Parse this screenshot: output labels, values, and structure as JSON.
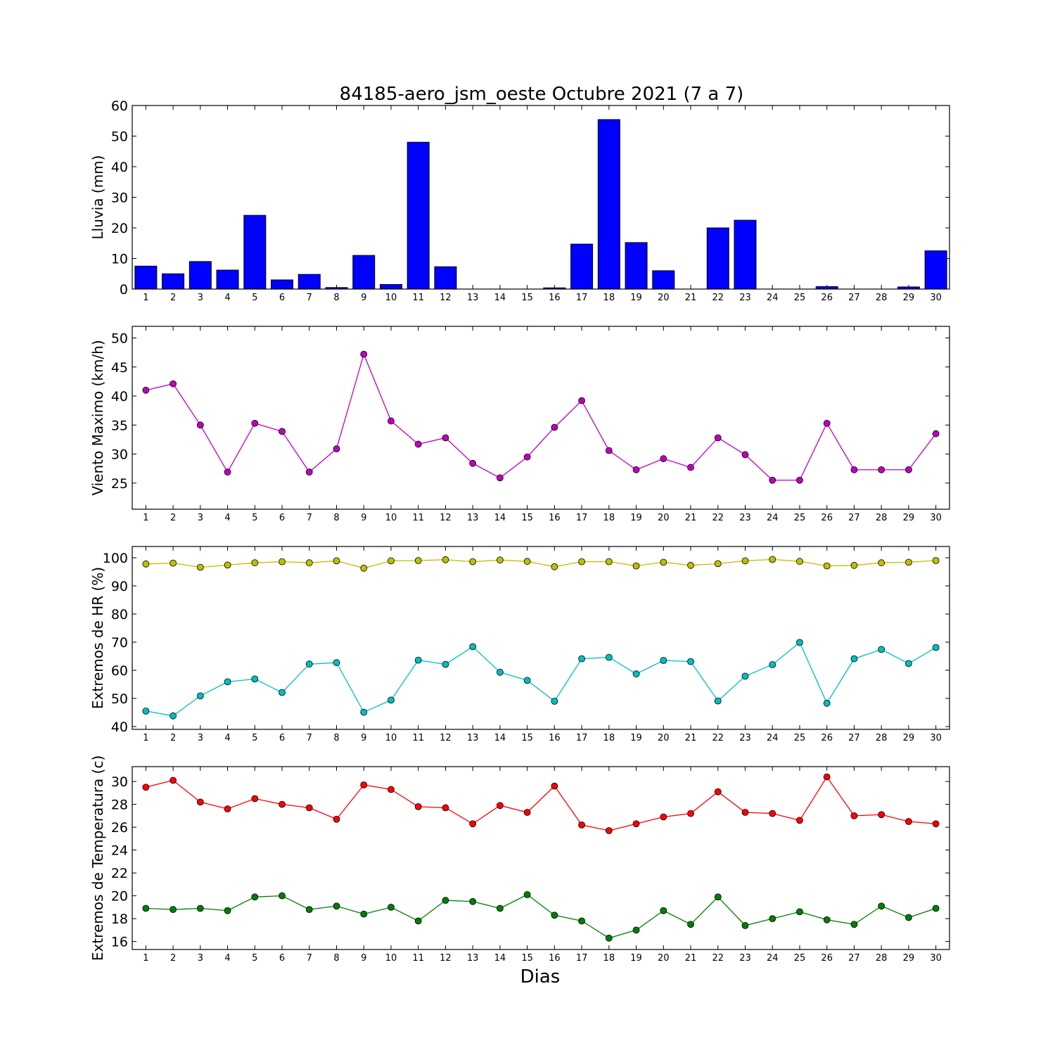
{
  "figure": {
    "title": "84185-aero_jsm_oeste Octubre 2021  (7 a 7)",
    "xlabel": "Dias"
  },
  "chart_data": [
    {
      "type": "bar",
      "ylabel": "Lluvia (mm)",
      "categories": [
        "1",
        "2",
        "3",
        "4",
        "5",
        "6",
        "7",
        "8",
        "9",
        "10",
        "11",
        "12",
        "13",
        "14",
        "15",
        "16",
        "17",
        "18",
        "19",
        "20",
        "21",
        "22",
        "23",
        "24",
        "25",
        "26",
        "27",
        "28",
        "29",
        "30"
      ],
      "ylim": [
        0,
        60
      ],
      "yticks": [
        0,
        10,
        20,
        30,
        40,
        50,
        60
      ],
      "series": [
        {
          "color": "#0000ff",
          "values": [
            7.5,
            5.0,
            9.0,
            6.2,
            24.1,
            3.0,
            4.8,
            0.5,
            11.0,
            1.5,
            48.0,
            7.3,
            0,
            0,
            0,
            0.4,
            14.7,
            55.4,
            15.2,
            6.0,
            0,
            20.0,
            22.5,
            0,
            0,
            0.8,
            0,
            0,
            0.7,
            12.5
          ]
        }
      ]
    },
    {
      "type": "line",
      "ylabel": "Viento Maximo (km/h)",
      "categories": [
        "1",
        "2",
        "3",
        "4",
        "5",
        "6",
        "7",
        "8",
        "9",
        "10",
        "11",
        "12",
        "13",
        "14",
        "15",
        "16",
        "17",
        "18",
        "19",
        "20",
        "21",
        "22",
        "23",
        "24",
        "25",
        "26",
        "27",
        "28",
        "29",
        "30"
      ],
      "ylim": [
        20.5,
        52
      ],
      "yticks": [
        25,
        30,
        35,
        40,
        45,
        50
      ],
      "series": [
        {
          "color": "#bf00bf",
          "values": [
            41.0,
            42.1,
            35.0,
            26.9,
            35.3,
            33.9,
            26.9,
            30.9,
            47.2,
            35.7,
            31.7,
            32.8,
            28.4,
            25.9,
            29.5,
            34.6,
            39.2,
            30.6,
            27.3,
            29.2,
            27.7,
            32.8,
            29.9,
            25.5,
            25.5,
            35.3,
            27.3,
            27.3,
            27.3,
            33.5
          ]
        }
      ]
    },
    {
      "type": "line",
      "ylabel": "Extremos de HR (%)",
      "categories": [
        "1",
        "2",
        "3",
        "4",
        "5",
        "6",
        "7",
        "8",
        "9",
        "10",
        "11",
        "12",
        "13",
        "14",
        "15",
        "16",
        "17",
        "18",
        "19",
        "20",
        "21",
        "22",
        "23",
        "24",
        "25",
        "26",
        "27",
        "28",
        "29",
        "30"
      ],
      "ylim": [
        39,
        104
      ],
      "yticks": [
        40,
        50,
        60,
        70,
        80,
        90,
        100
      ],
      "series": [
        {
          "color": "#bfbf00",
          "values": [
            97.8,
            98.1,
            96.6,
            97.4,
            98.2,
            98.6,
            98.2,
            98.9,
            96.3,
            98.9,
            99.0,
            99.3,
            98.6,
            99.2,
            98.7,
            96.8,
            98.6,
            98.6,
            97.1,
            98.4,
            97.3,
            97.9,
            98.9,
            99.4,
            98.7,
            97.1,
            97.3,
            98.2,
            98.4,
            99.0
          ]
        },
        {
          "color": "#00bfbf",
          "values": [
            45.5,
            43.8,
            50.9,
            55.9,
            56.9,
            52.1,
            62.2,
            62.7,
            45.1,
            49.4,
            63.6,
            62.1,
            68.4,
            59.3,
            56.4,
            49.0,
            64.1,
            64.6,
            58.7,
            63.5,
            63.1,
            49.1,
            57.9,
            62.0,
            69.9,
            48.3,
            64.1,
            67.4,
            62.4,
            68.1
          ]
        }
      ]
    },
    {
      "type": "line",
      "ylabel": "Extremos de Temperatura (c)",
      "categories": [
        "1",
        "2",
        "3",
        "4",
        "5",
        "6",
        "7",
        "8",
        "9",
        "10",
        "11",
        "12",
        "13",
        "14",
        "15",
        "16",
        "17",
        "18",
        "19",
        "20",
        "21",
        "22",
        "23",
        "24",
        "25",
        "26",
        "27",
        "28",
        "29",
        "30"
      ],
      "ylim": [
        15.3,
        31.3
      ],
      "yticks": [
        16,
        18,
        20,
        22,
        24,
        26,
        28,
        30
      ],
      "series": [
        {
          "color": "#ff0000",
          "values": [
            29.5,
            30.1,
            28.2,
            27.6,
            28.5,
            28.0,
            27.7,
            26.7,
            29.7,
            29.3,
            27.8,
            27.7,
            26.3,
            27.9,
            27.3,
            29.6,
            26.2,
            25.7,
            26.3,
            26.9,
            27.2,
            29.1,
            27.3,
            27.2,
            26.6,
            30.4,
            27.0,
            27.1,
            26.5,
            26.3
          ]
        },
        {
          "color": "#007f00",
          "values": [
            18.9,
            18.8,
            18.9,
            18.7,
            19.9,
            20.0,
            18.8,
            19.1,
            18.4,
            19.0,
            17.8,
            19.6,
            19.5,
            18.9,
            20.1,
            18.3,
            17.8,
            16.3,
            17.0,
            18.7,
            17.5,
            19.9,
            17.4,
            18.0,
            18.6,
            17.9,
            17.5,
            19.1,
            18.1,
            18.9
          ]
        }
      ]
    }
  ]
}
